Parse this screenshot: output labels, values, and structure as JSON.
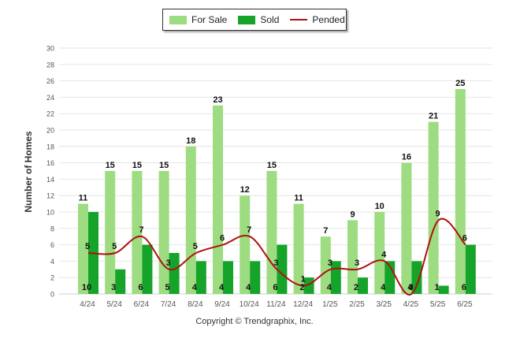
{
  "legend": {
    "for_sale": "For Sale",
    "sold": "Sold",
    "pended": "Pended"
  },
  "colors": {
    "for_sale": "#9ddc80",
    "sold": "#16a32a",
    "pended": "#b01010",
    "grid": "#e6e6e6",
    "axis_text": "#555555"
  },
  "copyright": "Copyright © Trendgraphix, Inc.",
  "chart_data": {
    "type": "bar",
    "ylabel": "Number of Homes",
    "ylim": [
      0,
      30
    ],
    "yticks": [
      0,
      2,
      4,
      6,
      8,
      10,
      12,
      14,
      16,
      18,
      20,
      22,
      24,
      26,
      28,
      30
    ],
    "grid": true,
    "legend_position": "top",
    "categories": [
      "4/24",
      "5/24",
      "6/24",
      "7/24",
      "8/24",
      "9/24",
      "10/24",
      "11/24",
      "12/24",
      "1/25",
      "2/25",
      "3/25",
      "4/25",
      "5/25",
      "6/25"
    ],
    "series": [
      {
        "name": "For Sale",
        "kind": "bar",
        "values": [
          11,
          15,
          15,
          15,
          18,
          23,
          12,
          15,
          11,
          7,
          9,
          10,
          16,
          21,
          25
        ]
      },
      {
        "name": "Sold",
        "kind": "bar",
        "values": [
          10,
          3,
          6,
          5,
          4,
          4,
          4,
          6,
          2,
          4,
          2,
          4,
          4,
          1,
          6
        ]
      },
      {
        "name": "Pended",
        "kind": "line",
        "values": [
          5,
          5,
          7,
          3,
          5,
          6,
          7,
          3,
          1,
          3,
          3,
          4,
          0,
          9,
          6
        ]
      }
    ]
  }
}
